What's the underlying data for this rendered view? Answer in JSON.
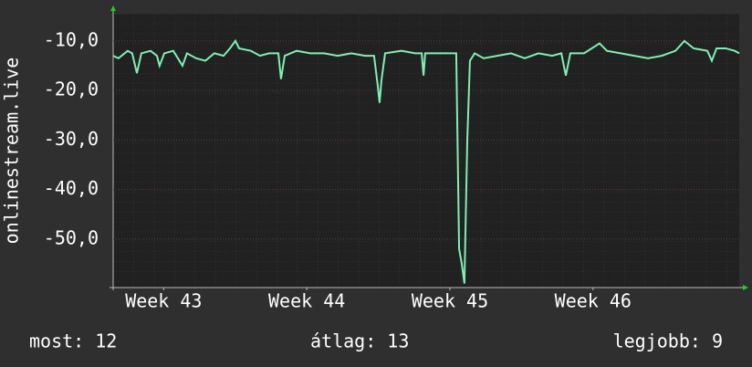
{
  "chart_data": {
    "type": "line",
    "y_label": "onlinestream.live",
    "x": [
      1.03,
      1.29,
      1.74,
      1.96,
      2.19,
      2.41,
      2.86,
      3.17,
      3.3,
      3.53,
      3.97,
      4.42,
      4.64,
      5.09,
      5.54,
      5.98,
      6.43,
      6.74,
      7.01,
      7.19,
      7.77,
      8.21,
      8.66,
      9.11,
      9.24,
      9.42,
      10.0,
      10.67,
      11.34,
      12.01,
      12.68,
      13.35,
      13.79,
      13.97,
      14.06,
      14.15,
      14.33,
      15.13,
      15.8,
      16.12,
      16.21,
      16.29,
      16.92,
      17.59,
      17.81,
      17.95,
      18.08,
      18.21,
      18.35,
      18.48,
      18.71,
      19.15,
      19.82,
      20.49,
      21.16,
      21.83,
      22.5,
      22.95,
      23.17,
      23.39,
      24.06,
      24.82,
      25.18,
      25.85,
      26.52,
      27.19,
      27.86,
      28.53,
      28.97,
      29.42,
      30.09,
      30.31,
      30.54,
      30.98,
      31.43,
      31.65
    ],
    "series": [
      {
        "color": "#7ff0b4",
        "values": [
          -13,
          -13.5,
          -12,
          -12.5,
          -16.5,
          -12.5,
          -12,
          -13,
          -15,
          -12.5,
          -12,
          -15,
          -12.5,
          -13.5,
          -14,
          -12.5,
          -13,
          -11.5,
          -10,
          -11.5,
          -12,
          -13,
          -12.5,
          -12.5,
          -17.7,
          -13,
          -12,
          -12.5,
          -12.5,
          -13,
          -12.5,
          -13,
          -13,
          -19,
          -22.5,
          -18,
          -12.5,
          -12,
          -12.5,
          -12.5,
          -17,
          -12.5,
          -12.5,
          -12.5,
          -12.5,
          -52,
          -55,
          -59,
          -30,
          -14,
          -12.5,
          -13.5,
          -13,
          -12.5,
          -13.5,
          -12.5,
          -13,
          -12.5,
          -17,
          -12.5,
          -12.5,
          -10.5,
          -12,
          -12.5,
          -13,
          -13.5,
          -13,
          -12,
          -10,
          -11.5,
          -12,
          -14,
          -11.5,
          -11.5,
          -12,
          -12.5
        ]
      }
    ],
    "xlim": [
      1.03,
      31.65
    ],
    "xticks": [
      {
        "value": 3.5,
        "label": "Week 43"
      },
      {
        "value": 10.5,
        "label": "Week 44"
      },
      {
        "value": 17.5,
        "label": "Week 45"
      },
      {
        "value": 24.5,
        "label": "Week 46"
      }
    ],
    "ylim": [
      -59.8,
      -4.5
    ],
    "yticks": [
      {
        "value": -10,
        "label": "-10,0"
      },
      {
        "value": -20,
        "label": "-20,0"
      },
      {
        "value": -30,
        "label": "-30,0"
      },
      {
        "value": -40,
        "label": "-40,0"
      },
      {
        "value": -50,
        "label": "-50,0"
      }
    ],
    "grid": true,
    "footer": [
      "most: 12",
      "átlag: 13",
      "legjobb: 9"
    ]
  }
}
